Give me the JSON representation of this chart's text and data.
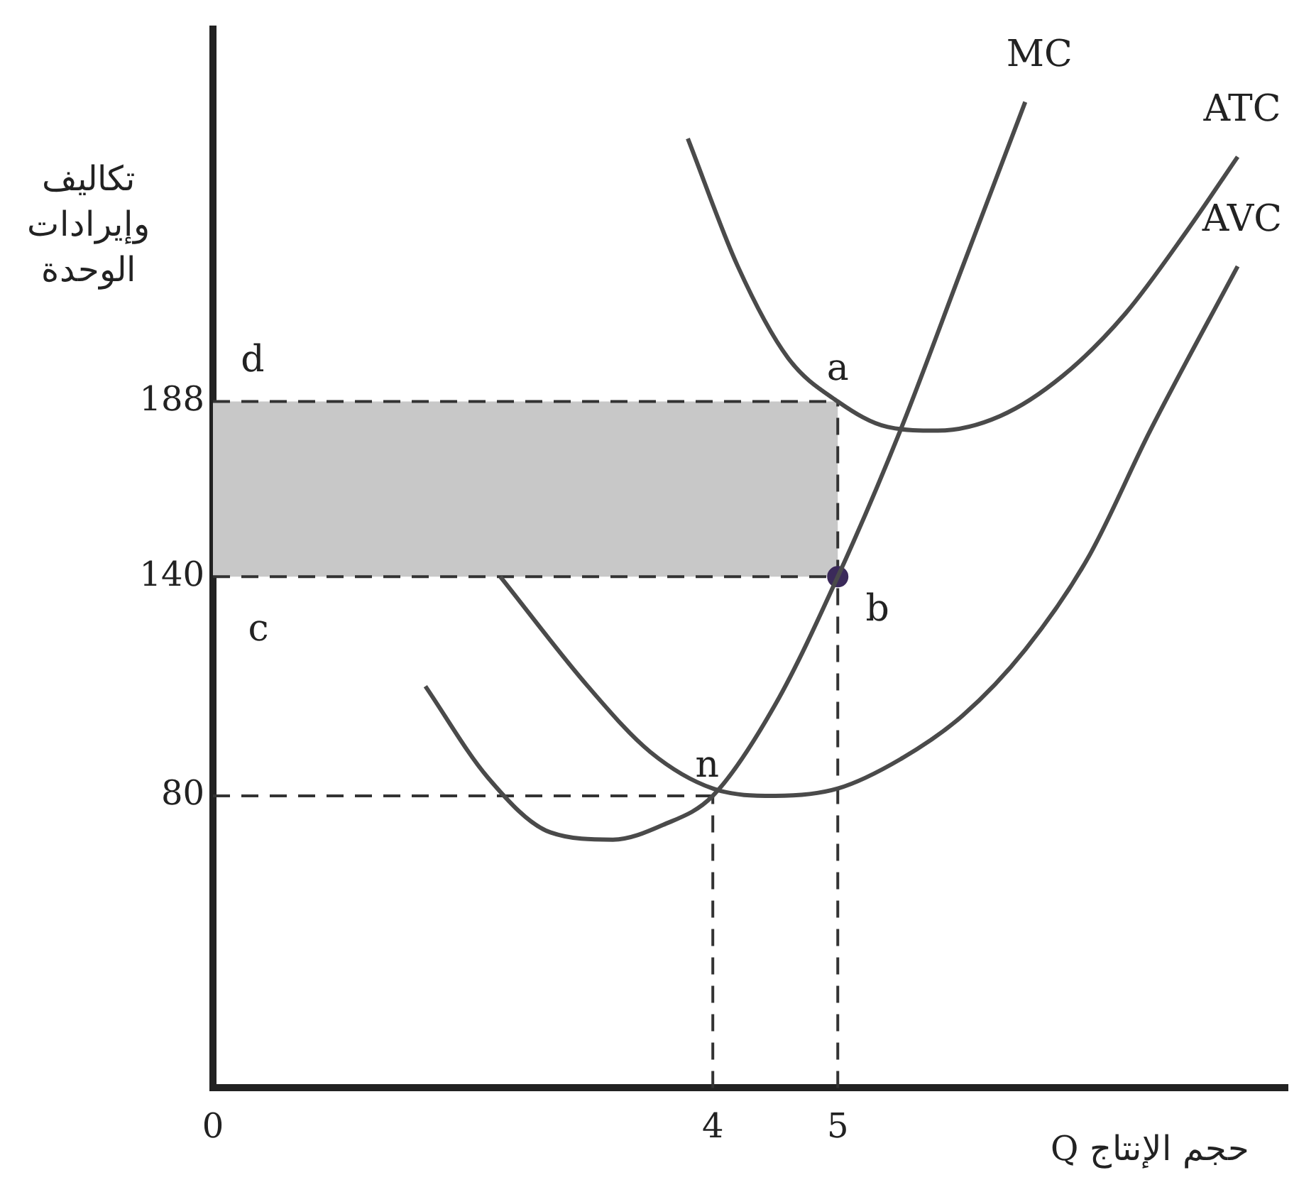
{
  "chart_data": {
    "type": "line",
    "xlabel": "حجم الإنتاج Q",
    "ylabel": "تكاليف وإيرادات الوحدة",
    "xlim": [
      0,
      8.6
    ],
    "ylim": [
      0,
      290
    ],
    "xticks": [
      0,
      4,
      5
    ],
    "yticks": [
      80,
      140,
      188
    ],
    "grid": false,
    "legend": false,
    "line_style": "solid",
    "series": [
      {
        "name": "MC",
        "color": "#4a4a4a",
        "x": [
          1.7,
          2.2,
          2.7,
          3.2,
          3.6,
          4,
          4.5,
          5,
          5.5,
          6,
          6.5
        ],
        "values": [
          110,
          85,
          70,
          68,
          72,
          80,
          105,
          140,
          180,
          225,
          270
        ]
      },
      {
        "name": "ATC",
        "color": "#4a4a4a",
        "x": [
          3.8,
          4.2,
          4.6,
          5,
          5.4,
          5.8,
          6.3,
          6.8,
          7.3,
          7.8,
          8.2
        ],
        "values": [
          260,
          225,
          200,
          188,
          181,
          180,
          184,
          195,
          212,
          235,
          255
        ]
      },
      {
        "name": "AVC",
        "color": "#4a4a4a",
        "x": [
          2.3,
          3,
          3.5,
          4,
          4.5,
          5,
          5.5,
          6,
          6.5,
          7,
          7.5,
          8.2
        ],
        "values": [
          140,
          110,
          92,
          82,
          80,
          82,
          90,
          102,
          120,
          145,
          180,
          225
        ]
      },
      {
        "type": "scatter",
        "color": "#3b2a5a",
        "x": [
          5
        ],
        "values": [
          140
        ]
      }
    ],
    "ref_lines": [
      {
        "axis": "y",
        "value": 80,
        "line_style": "dashed"
      },
      {
        "axis": "y",
        "value": 140,
        "line_style": "dashed"
      },
      {
        "axis": "y",
        "value": 188,
        "line_style": "dashed"
      },
      {
        "axis": "x",
        "value": 4,
        "line_style": "dashed"
      },
      {
        "axis": "x",
        "value": 5,
        "line_style": "dashed"
      }
    ],
    "bands": [
      {
        "axis": "y",
        "from": 140,
        "to": 188,
        "color": "#c8c8c8"
      }
    ],
    "annotations": [
      {
        "text": "a",
        "x": 5,
        "y": 188
      },
      {
        "text": "b",
        "x": 5,
        "y": 140
      },
      {
        "text": "n",
        "x": 4,
        "y": 80
      },
      {
        "text": "d",
        "x": 0,
        "y": 188
      },
      {
        "text": "c",
        "x": 0,
        "y": 140
      }
    ]
  }
}
